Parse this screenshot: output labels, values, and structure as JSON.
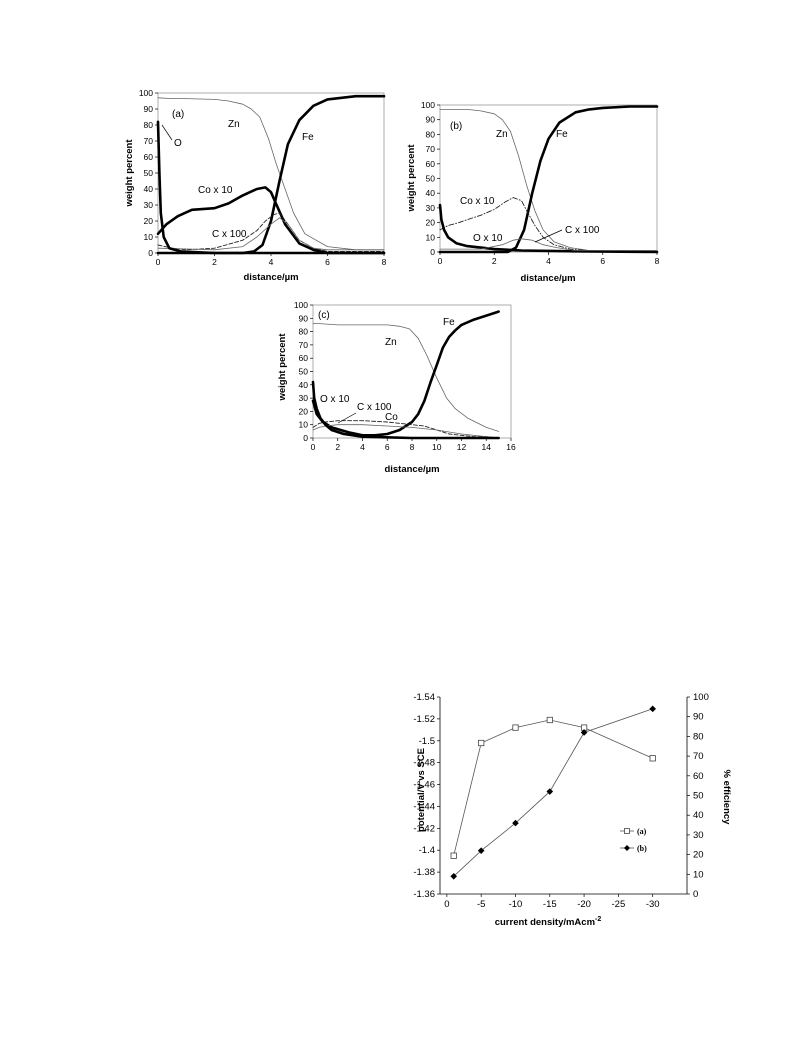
{
  "chart_data": [
    {
      "type": "line",
      "panel_label": "(a)",
      "xlabel": "distance/µm",
      "ylabel": "weight percent",
      "xlim": [
        0,
        8
      ],
      "ylim": [
        0,
        100
      ],
      "xticks": [
        "0",
        "2",
        "4",
        "6",
        "8"
      ],
      "yticks": [
        "0",
        "10",
        "20",
        "30",
        "40",
        "50",
        "60",
        "70",
        "80",
        "90",
        "100"
      ],
      "series": [
        {
          "name": "Zn",
          "style": "thin",
          "x": [
            0,
            0.5,
            1,
            2,
            2.5,
            3,
            3.3,
            3.6,
            3.9,
            4.2,
            4.5,
            4.8,
            5.2,
            6,
            7,
            8
          ],
          "y": [
            97,
            96.5,
            96.5,
            96,
            95,
            93,
            90,
            85,
            72,
            55,
            40,
            25,
            12,
            4,
            2,
            2
          ]
        },
        {
          "name": "Fe",
          "style": "thick",
          "x": [
            0,
            3,
            3.4,
            3.7,
            4,
            4.3,
            4.6,
            5,
            5.5,
            6,
            7,
            8
          ],
          "y": [
            0,
            0,
            1,
            5,
            20,
            45,
            68,
            83,
            92,
            96,
            98,
            98
          ]
        },
        {
          "name": "Co x 10",
          "style": "thick",
          "x": [
            0,
            0.3,
            0.7,
            1.2,
            2,
            2.5,
            3,
            3.5,
            3.8,
            4,
            4.2,
            4.5,
            5,
            5.5,
            6,
            7,
            8
          ],
          "y": [
            12,
            18,
            23,
            27,
            28,
            31,
            36,
            40,
            41,
            38,
            30,
            18,
            6,
            2,
            0,
            0,
            0
          ]
        },
        {
          "name": "C x 100",
          "style": "dashed",
          "x": [
            0,
            0.5,
            1,
            2,
            3,
            3.5,
            3.8,
            4.1,
            4.3,
            4.6,
            5,
            5.5,
            6,
            7,
            8
          ],
          "y": [
            5,
            3,
            2,
            3,
            8,
            14,
            20,
            24,
            25,
            18,
            8,
            3,
            1,
            1,
            1
          ]
        },
        {
          "name": "",
          "style": "thin",
          "x": [
            0,
            2,
            3,
            3.5,
            4,
            4.3,
            4.6,
            5,
            5.5,
            6,
            8
          ],
          "y": [
            3,
            2,
            4,
            10,
            18,
            22,
            18,
            8,
            3,
            2,
            2
          ]
        },
        {
          "name": "O",
          "style": "thick",
          "x": [
            0,
            0.05,
            0.1,
            0.2,
            0.4,
            0.8,
            2,
            8
          ],
          "y": [
            82,
            50,
            25,
            10,
            3,
            1,
            0,
            0
          ]
        }
      ],
      "labels": [
        "Zn",
        "Fe",
        "O",
        "Co x 10",
        "C x 100"
      ]
    },
    {
      "type": "line",
      "panel_label": "(b)",
      "xlabel": "distance/µm",
      "ylabel": "weight percent",
      "xlim": [
        0,
        8
      ],
      "ylim": [
        0,
        100
      ],
      "xticks": [
        "0",
        "2",
        "4",
        "6",
        "8"
      ],
      "yticks": [
        "0",
        "10",
        "20",
        "30",
        "40",
        "50",
        "60",
        "70",
        "80",
        "90",
        "100"
      ],
      "series": [
        {
          "name": "Zn",
          "style": "thin",
          "x": [
            0,
            1,
            1.5,
            2,
            2.3,
            2.6,
            2.9,
            3.2,
            3.5,
            3.8,
            4.2,
            4.8,
            5.5,
            8
          ],
          "y": [
            97,
            97,
            96,
            94,
            90,
            82,
            65,
            45,
            28,
            15,
            7,
            3,
            1,
            1
          ]
        },
        {
          "name": "Fe",
          "style": "thick",
          "x": [
            0,
            2.5,
            2.8,
            3.1,
            3.4,
            3.7,
            4,
            4.4,
            5,
            5.5,
            6,
            7,
            8
          ],
          "y": [
            0,
            0,
            3,
            15,
            40,
            62,
            77,
            88,
            95,
            97,
            98,
            99,
            99
          ]
        },
        {
          "name": "Co x 10",
          "style": "dashdot",
          "x": [
            0,
            0.3,
            0.7,
            1,
            1.5,
            2,
            2.4,
            2.7,
            3,
            3.2,
            3.5,
            3.8,
            4.2,
            4.8,
            5.5,
            8
          ],
          "y": [
            15,
            18,
            20,
            22,
            25,
            29,
            34,
            37,
            35,
            28,
            18,
            10,
            5,
            2,
            1,
            0
          ]
        },
        {
          "name": "O x 10",
          "style": "thick",
          "x": [
            0,
            0.05,
            0.15,
            0.3,
            0.6,
            1,
            2,
            3,
            5,
            8
          ],
          "y": [
            32,
            22,
            15,
            10,
            6,
            4,
            2,
            1,
            0.5,
            0
          ]
        },
        {
          "name": "C x 100",
          "style": "thin",
          "x": [
            0,
            1.5,
            2.3,
            2.7,
            3,
            3.4,
            3.8,
            4.3,
            5,
            8
          ],
          "y": [
            2,
            2,
            5,
            8,
            9,
            8,
            5,
            3,
            1,
            1
          ]
        }
      ],
      "labels": [
        "Zn",
        "Fe",
        "Co x 10",
        "O x 10",
        "C x 100"
      ]
    },
    {
      "type": "line",
      "panel_label": "(c)",
      "xlabel": "distance/µm",
      "ylabel": "weight percent",
      "xlim": [
        0,
        16
      ],
      "ylim": [
        0,
        100
      ],
      "xticks": [
        "0",
        "2",
        "4",
        "6",
        "8",
        "10",
        "12",
        "14",
        "16"
      ],
      "yticks": [
        "0",
        "10",
        "20",
        "30",
        "40",
        "50",
        "60",
        "70",
        "80",
        "90",
        "100"
      ],
      "series": [
        {
          "name": "Zn",
          "style": "thin",
          "x": [
            0,
            0.5,
            2,
            4,
            6,
            7,
            7.8,
            8.5,
            9.2,
            10,
            10.8,
            11.5,
            12.5,
            14,
            15
          ],
          "y": [
            86,
            86,
            85,
            85,
            85,
            84,
            82,
            75,
            62,
            45,
            30,
            22,
            15,
            8,
            5
          ]
        },
        {
          "name": "Fe",
          "style": "thick",
          "x": [
            0,
            0.3,
            0.8,
            1.5,
            3,
            4,
            5,
            6,
            7,
            8,
            8.5,
            9,
            9.5,
            10,
            10.5,
            11,
            11.5,
            12,
            13,
            14,
            15
          ],
          "y": [
            28,
            18,
            12,
            8,
            4,
            2,
            2,
            3,
            6,
            12,
            18,
            28,
            42,
            55,
            68,
            76,
            81,
            85,
            89,
            92,
            95
          ]
        },
        {
          "name": "Co",
          "style": "dashed",
          "x": [
            0,
            0.5,
            1,
            2,
            4,
            6,
            8,
            9,
            10,
            11,
            12,
            13,
            14,
            15
          ],
          "y": [
            8,
            11,
            12,
            13,
            13,
            12,
            10,
            9,
            6,
            3,
            2,
            1,
            1,
            0
          ]
        },
        {
          "name": "C x 100",
          "style": "thin",
          "x": [
            0,
            0.5,
            1,
            2,
            4,
            6,
            8,
            10,
            12,
            14,
            15
          ],
          "y": [
            6,
            8,
            9,
            10,
            10,
            9,
            8,
            6,
            3,
            1,
            0
          ]
        },
        {
          "name": "O x 10",
          "style": "thick",
          "x": [
            0,
            0.1,
            0.3,
            0.6,
            1,
            1.5,
            2.5,
            4,
            8,
            15
          ],
          "y": [
            42,
            30,
            22,
            15,
            10,
            6,
            3,
            1,
            0,
            0
          ]
        }
      ],
      "labels": [
        "Zn",
        "Fe",
        "O x 10",
        "C x 100",
        "Co"
      ]
    },
    {
      "type": "line",
      "xlabel": "current density/mAcm",
      "xlabel_sup": "-2",
      "ylabel_left": "potential/V vs SCE",
      "ylabel_right": "% efficiency",
      "categories": [
        "0",
        "-5",
        "-10",
        "-15",
        "-20",
        "-25",
        "-30"
      ],
      "x": [
        -1,
        -5,
        -10,
        -15,
        -20,
        -30
      ],
      "ylim_left": [
        -1.36,
        -1.54
      ],
      "ylim_right": [
        0,
        100
      ],
      "yticks_left": [
        "-1.36",
        "-1.38",
        "-1.4",
        "-1.42",
        "-1.44",
        "-1.46",
        "-1.48",
        "-1.5",
        "-1.52",
        "-1.54"
      ],
      "yticks_right": [
        "0",
        "10",
        "20",
        "30",
        "40",
        "50",
        "60",
        "70",
        "80",
        "90",
        "100"
      ],
      "series": [
        {
          "name": "(a)",
          "axis": "left",
          "marker": "open-square",
          "values": [
            -1.395,
            -1.498,
            -1.512,
            -1.519,
            -1.512,
            -1.484
          ]
        },
        {
          "name": "(b)",
          "axis": "right",
          "marker": "filled-diamond",
          "values": [
            9,
            22,
            36,
            52,
            82,
            94
          ]
        }
      ]
    }
  ]
}
